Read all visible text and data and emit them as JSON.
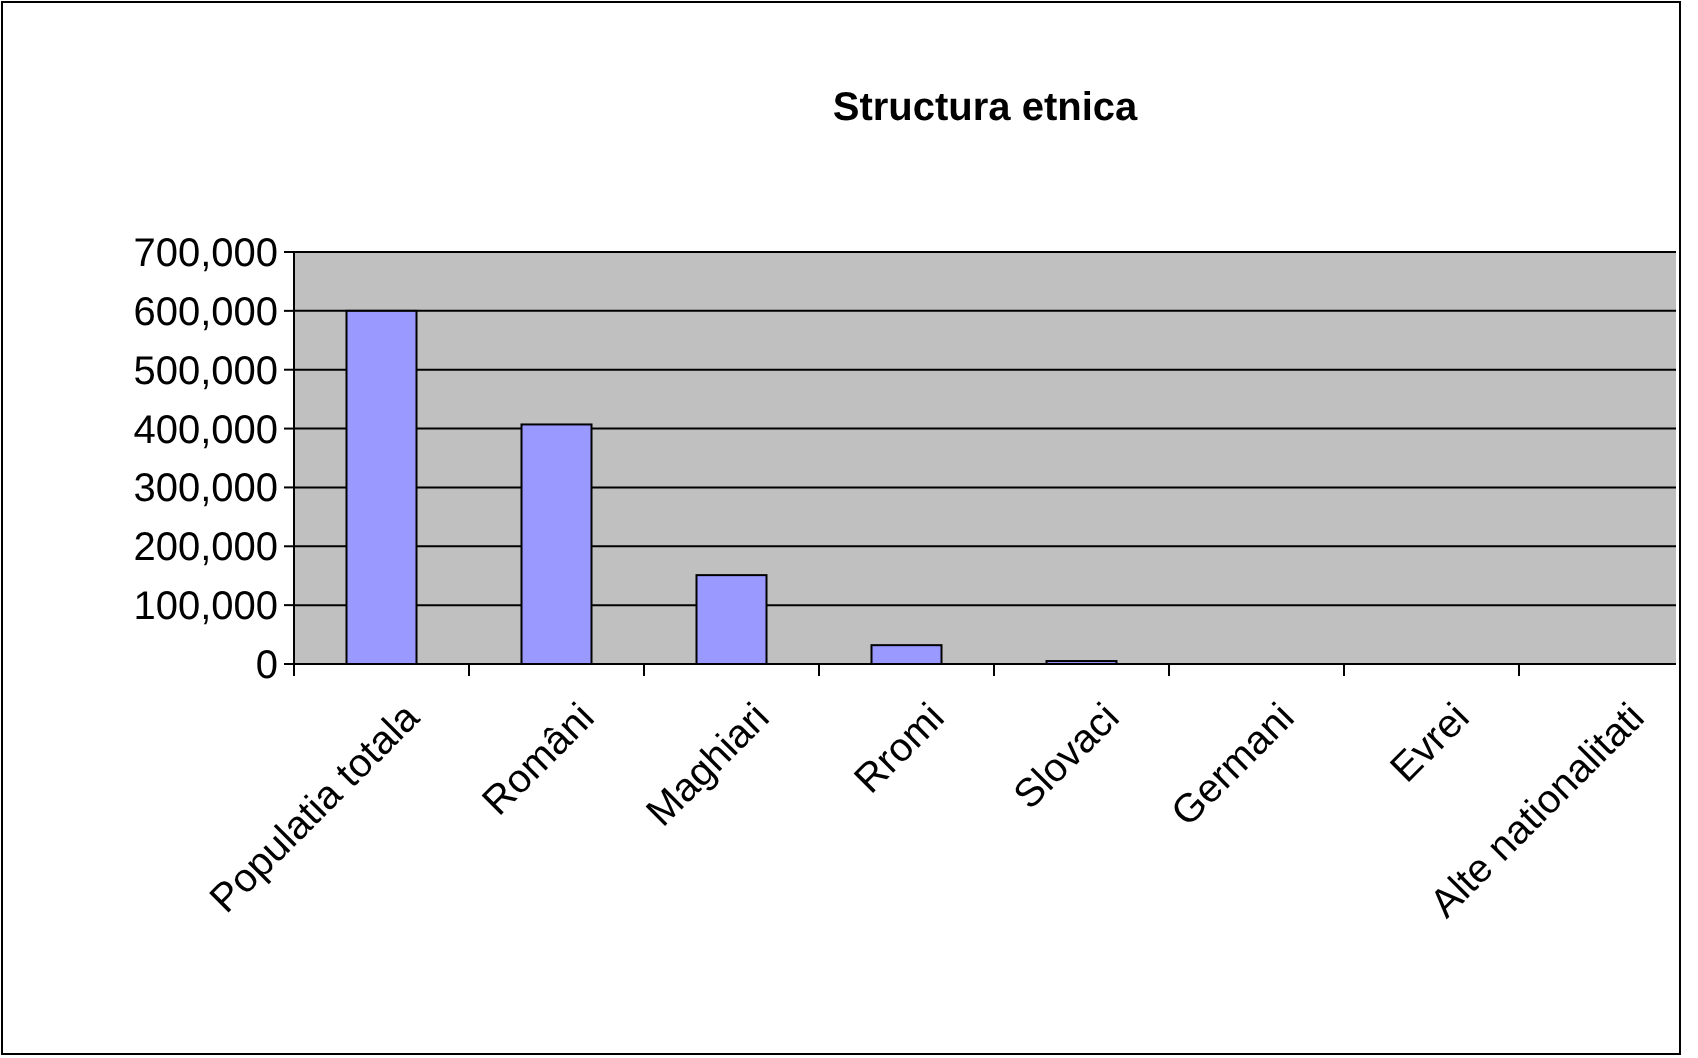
{
  "chart_data": {
    "type": "bar",
    "title": "Structura etnica",
    "categories": [
      "Populatia totala",
      "Români",
      "Maghiari",
      "Rromi",
      "Slovaci",
      "Germani",
      "Evrei",
      "Alte nationalitati"
    ],
    "values": [
      600000,
      407000,
      151000,
      32000,
      5000,
      0,
      0,
      0
    ],
    "color": "#9999ff",
    "ylim": [
      0,
      700000
    ],
    "yticks": [
      {
        "value": 0,
        "label": "0"
      },
      {
        "value": 100000,
        "label": "100,000"
      },
      {
        "value": 200000,
        "label": "200,000"
      },
      {
        "value": 300000,
        "label": "300,000"
      },
      {
        "value": 400000,
        "label": "400,000"
      },
      {
        "value": 500000,
        "label": "500,000"
      },
      {
        "value": 600000,
        "label": "600,000"
      },
      {
        "value": 700000,
        "label": "700,000"
      }
    ],
    "grid": "y"
  }
}
